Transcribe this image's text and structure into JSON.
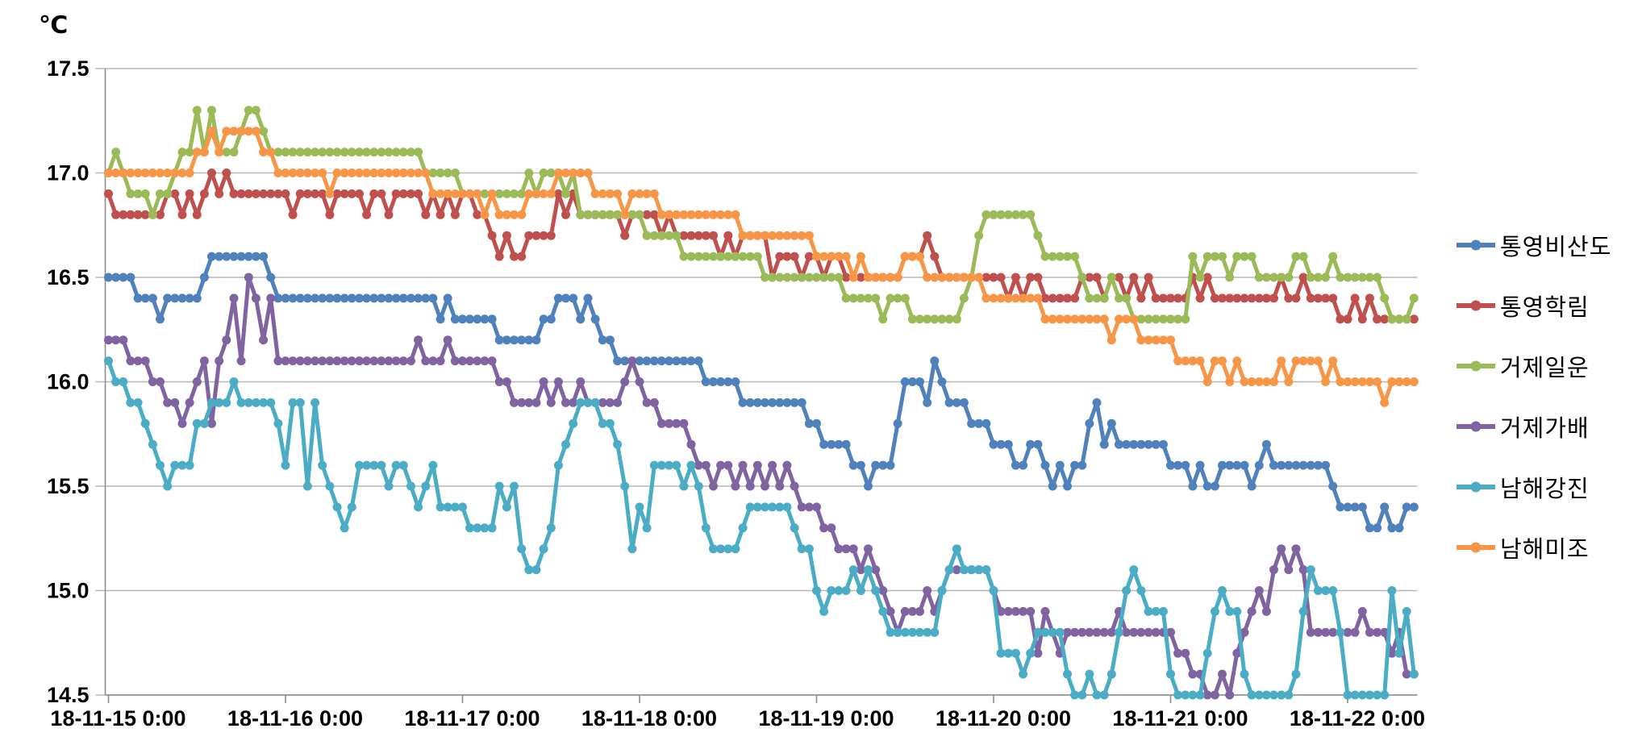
{
  "chart": {
    "y_axis_title": "℃",
    "background": "#ffffff",
    "gridline_color": "#b7b7b7",
    "axis_color": "#8e8e8e",
    "text_color": "#000000"
  },
  "chart_data": {
    "type": "line",
    "title": "",
    "xlabel": "",
    "ylabel": "℃",
    "unit": "°C",
    "grid": true,
    "legend_position": "right",
    "ylim": [
      14.5,
      17.5
    ],
    "y_tick_step": 0.5,
    "y_tick_labels": [
      "17.5",
      "17.0",
      "16.5",
      "16.0",
      "15.5",
      "15.0",
      "14.5"
    ],
    "x_start": "2018-11-15 00:00",
    "x_interval_hours": 1,
    "x_tick_labels": [
      "18-11-15 0:00",
      "18-11-16 0:00",
      "18-11-17 0:00",
      "18-11-18 0:00",
      "18-11-19 0:00",
      "18-11-20 0:00",
      "18-11-21 0:00",
      "18-11-22 0:00"
    ],
    "x_tick_every_hours": 24,
    "series": [
      {
        "name": "통영비산도",
        "color": "#4F81BD",
        "values": [
          16.5,
          16.5,
          16.5,
          16.5,
          16.4,
          16.4,
          16.4,
          16.3,
          16.4,
          16.4,
          16.4,
          16.4,
          16.4,
          16.5,
          16.6,
          16.6,
          16.6,
          16.6,
          16.6,
          16.6,
          16.6,
          16.6,
          16.5,
          16.4,
          16.4,
          16.4,
          16.4,
          16.4,
          16.4,
          16.4,
          16.4,
          16.4,
          16.4,
          16.4,
          16.4,
          16.4,
          16.4,
          16.4,
          16.4,
          16.4,
          16.4,
          16.4,
          16.4,
          16.4,
          16.4,
          16.3,
          16.4,
          16.3,
          16.3,
          16.3,
          16.3,
          16.3,
          16.3,
          16.2,
          16.2,
          16.2,
          16.2,
          16.2,
          16.2,
          16.3,
          16.3,
          16.4,
          16.4,
          16.4,
          16.3,
          16.4,
          16.3,
          16.2,
          16.2,
          16.1,
          16.1,
          16.1,
          16.1,
          16.1,
          16.1,
          16.1,
          16.1,
          16.1,
          16.1,
          16.1,
          16.1,
          16.0,
          16.0,
          16.0,
          16.0,
          16.0,
          15.9,
          15.9,
          15.9,
          15.9,
          15.9,
          15.9,
          15.9,
          15.9,
          15.9,
          15.8,
          15.8,
          15.7,
          15.7,
          15.7,
          15.7,
          15.6,
          15.6,
          15.5,
          15.6,
          15.6,
          15.6,
          15.8,
          16.0,
          16.0,
          16.0,
          15.9,
          16.1,
          16.0,
          15.9,
          15.9,
          15.9,
          15.8,
          15.8,
          15.8,
          15.7,
          15.7,
          15.7,
          15.6,
          15.6,
          15.7,
          15.7,
          15.6,
          15.5,
          15.6,
          15.5,
          15.6,
          15.6,
          15.8,
          15.9,
          15.7,
          15.8,
          15.7,
          15.7,
          15.7,
          15.7,
          15.7,
          15.7,
          15.7,
          15.6,
          15.6,
          15.6,
          15.5,
          15.6,
          15.5,
          15.5,
          15.6,
          15.6,
          15.6,
          15.6,
          15.5,
          15.6,
          15.7,
          15.6,
          15.6,
          15.6,
          15.6,
          15.6,
          15.6,
          15.6,
          15.6,
          15.5,
          15.4,
          15.4,
          15.4,
          15.4,
          15.3,
          15.3,
          15.4,
          15.3,
          15.3,
          15.4,
          15.4
        ]
      },
      {
        "name": "통영학림",
        "color": "#C0504D",
        "values": [
          16.9,
          16.8,
          16.8,
          16.8,
          16.8,
          16.8,
          16.8,
          16.8,
          16.9,
          16.9,
          16.8,
          16.9,
          16.8,
          16.9,
          17.0,
          16.9,
          17.0,
          16.9,
          16.9,
          16.9,
          16.9,
          16.9,
          16.9,
          16.9,
          16.9,
          16.8,
          16.9,
          16.9,
          16.9,
          16.9,
          16.8,
          16.9,
          16.9,
          16.9,
          16.9,
          16.8,
          16.9,
          16.9,
          16.8,
          16.9,
          16.9,
          16.9,
          16.9,
          16.8,
          16.9,
          16.8,
          16.9,
          16.8,
          16.9,
          16.9,
          16.8,
          16.8,
          16.7,
          16.6,
          16.7,
          16.6,
          16.6,
          16.7,
          16.7,
          16.7,
          16.7,
          16.9,
          16.8,
          16.9,
          16.8,
          16.8,
          16.8,
          16.8,
          16.8,
          16.8,
          16.7,
          16.8,
          16.8,
          16.8,
          16.8,
          16.7,
          16.8,
          16.7,
          16.7,
          16.7,
          16.7,
          16.7,
          16.7,
          16.6,
          16.7,
          16.6,
          16.7,
          16.7,
          16.7,
          16.7,
          16.5,
          16.6,
          16.6,
          16.6,
          16.5,
          16.6,
          16.6,
          16.5,
          16.6,
          16.6,
          16.5,
          16.5,
          16.5,
          16.5,
          16.5,
          16.5,
          16.5,
          16.5,
          16.6,
          16.6,
          16.6,
          16.7,
          16.6,
          16.5,
          16.5,
          16.5,
          16.5,
          16.5,
          16.5,
          16.5,
          16.5,
          16.5,
          16.4,
          16.5,
          16.4,
          16.5,
          16.5,
          16.4,
          16.4,
          16.4,
          16.4,
          16.4,
          16.5,
          16.5,
          16.5,
          16.4,
          16.5,
          16.5,
          16.4,
          16.5,
          16.4,
          16.5,
          16.4,
          16.4,
          16.4,
          16.4,
          16.4,
          16.5,
          16.4,
          16.5,
          16.4,
          16.4,
          16.4,
          16.4,
          16.4,
          16.4,
          16.4,
          16.4,
          16.4,
          16.5,
          16.4,
          16.4,
          16.5,
          16.4,
          16.4,
          16.4,
          16.4,
          16.3,
          16.3,
          16.4,
          16.3,
          16.4,
          16.3,
          16.3,
          16.3,
          16.3,
          16.3,
          16.3
        ]
      },
      {
        "name": "거제일운",
        "color": "#9BBB59",
        "values": [
          17.0,
          17.1,
          17.0,
          16.9,
          16.9,
          16.9,
          16.8,
          16.9,
          16.9,
          17.0,
          17.1,
          17.1,
          17.3,
          17.1,
          17.3,
          17.1,
          17.1,
          17.1,
          17.2,
          17.3,
          17.3,
          17.2,
          17.1,
          17.1,
          17.1,
          17.1,
          17.1,
          17.1,
          17.1,
          17.1,
          17.1,
          17.1,
          17.1,
          17.1,
          17.1,
          17.1,
          17.1,
          17.1,
          17.1,
          17.1,
          17.1,
          17.1,
          17.1,
          17.0,
          17.0,
          17.0,
          17.0,
          17.0,
          16.9,
          16.9,
          16.9,
          16.9,
          16.9,
          16.9,
          16.9,
          16.9,
          16.9,
          17.0,
          16.9,
          17.0,
          17.0,
          17.0,
          16.9,
          17.0,
          16.8,
          16.8,
          16.8,
          16.8,
          16.8,
          16.8,
          16.8,
          16.8,
          16.8,
          16.7,
          16.7,
          16.7,
          16.7,
          16.7,
          16.6,
          16.6,
          16.6,
          16.6,
          16.6,
          16.6,
          16.6,
          16.6,
          16.6,
          16.6,
          16.6,
          16.5,
          16.5,
          16.5,
          16.5,
          16.5,
          16.5,
          16.5,
          16.5,
          16.5,
          16.5,
          16.5,
          16.4,
          16.4,
          16.4,
          16.4,
          16.4,
          16.3,
          16.4,
          16.4,
          16.4,
          16.3,
          16.3,
          16.3,
          16.3,
          16.3,
          16.3,
          16.3,
          16.4,
          16.5,
          16.7,
          16.8,
          16.8,
          16.8,
          16.8,
          16.8,
          16.8,
          16.8,
          16.7,
          16.6,
          16.6,
          16.6,
          16.6,
          16.6,
          16.5,
          16.4,
          16.4,
          16.4,
          16.5,
          16.4,
          16.4,
          16.3,
          16.3,
          16.3,
          16.3,
          16.3,
          16.3,
          16.3,
          16.3,
          16.6,
          16.5,
          16.6,
          16.6,
          16.6,
          16.5,
          16.6,
          16.6,
          16.6,
          16.5,
          16.5,
          16.5,
          16.5,
          16.5,
          16.6,
          16.6,
          16.5,
          16.5,
          16.5,
          16.6,
          16.5,
          16.5,
          16.5,
          16.5,
          16.5,
          16.5,
          16.4,
          16.3,
          16.3,
          16.3,
          16.4
        ]
      },
      {
        "name": "거제가배",
        "color": "#8064A2",
        "values": [
          16.2,
          16.2,
          16.2,
          16.1,
          16.1,
          16.1,
          16.0,
          16.0,
          15.9,
          15.9,
          15.8,
          15.9,
          16.0,
          16.1,
          15.8,
          16.1,
          16.2,
          16.4,
          16.1,
          16.5,
          16.4,
          16.2,
          16.4,
          16.1,
          16.1,
          16.1,
          16.1,
          16.1,
          16.1,
          16.1,
          16.1,
          16.1,
          16.1,
          16.1,
          16.1,
          16.1,
          16.1,
          16.1,
          16.1,
          16.1,
          16.1,
          16.1,
          16.2,
          16.1,
          16.1,
          16.1,
          16.2,
          16.1,
          16.1,
          16.1,
          16.1,
          16.1,
          16.1,
          16.0,
          16.0,
          15.9,
          15.9,
          15.9,
          15.9,
          16.0,
          15.9,
          16.0,
          15.9,
          15.9,
          16.0,
          15.9,
          15.9,
          15.9,
          15.9,
          15.9,
          16.0,
          16.1,
          16.0,
          15.9,
          15.9,
          15.8,
          15.8,
          15.8,
          15.8,
          15.7,
          15.6,
          15.6,
          15.5,
          15.6,
          15.6,
          15.5,
          15.6,
          15.5,
          15.6,
          15.5,
          15.6,
          15.5,
          15.6,
          15.5,
          15.4,
          15.4,
          15.4,
          15.3,
          15.3,
          15.2,
          15.2,
          15.2,
          15.1,
          15.2,
          15.1,
          15.0,
          14.9,
          14.8,
          14.9,
          14.9,
          14.9,
          15.0,
          14.9,
          15.0,
          15.1,
          15.1,
          15.1,
          15.1,
          15.1,
          15.1,
          15.0,
          14.9,
          14.9,
          14.9,
          14.9,
          14.9,
          14.7,
          14.9,
          14.8,
          14.7,
          14.8,
          14.8,
          14.8,
          14.8,
          14.8,
          14.8,
          14.8,
          14.9,
          14.8,
          14.8,
          14.8,
          14.8,
          14.8,
          14.8,
          14.8,
          14.7,
          14.7,
          14.6,
          14.6,
          14.5,
          14.5,
          14.6,
          14.5,
          14.7,
          14.8,
          14.9,
          15.0,
          14.9,
          15.1,
          15.2,
          15.1,
          15.2,
          15.1,
          14.8,
          14.8,
          14.8,
          14.8,
          14.8,
          14.8,
          14.8,
          14.9,
          14.8,
          14.8,
          14.8,
          14.7,
          14.8,
          14.6,
          14.6
        ]
      },
      {
        "name": "남해강진",
        "color": "#4BACC6",
        "values": [
          16.1,
          16.0,
          16.0,
          15.9,
          15.9,
          15.8,
          15.7,
          15.6,
          15.5,
          15.6,
          15.6,
          15.6,
          15.8,
          15.8,
          15.9,
          15.9,
          15.9,
          16.0,
          15.9,
          15.9,
          15.9,
          15.9,
          15.9,
          15.8,
          15.6,
          15.9,
          15.9,
          15.5,
          15.9,
          15.6,
          15.5,
          15.4,
          15.3,
          15.4,
          15.6,
          15.6,
          15.6,
          15.6,
          15.5,
          15.6,
          15.6,
          15.5,
          15.4,
          15.5,
          15.6,
          15.4,
          15.4,
          15.4,
          15.4,
          15.3,
          15.3,
          15.3,
          15.3,
          15.5,
          15.4,
          15.5,
          15.2,
          15.1,
          15.1,
          15.2,
          15.3,
          15.6,
          15.7,
          15.8,
          15.9,
          15.9,
          15.9,
          15.8,
          15.8,
          15.7,
          15.5,
          15.2,
          15.4,
          15.3,
          15.6,
          15.6,
          15.6,
          15.6,
          15.5,
          15.6,
          15.5,
          15.3,
          15.2,
          15.2,
          15.2,
          15.2,
          15.3,
          15.4,
          15.4,
          15.4,
          15.4,
          15.4,
          15.4,
          15.3,
          15.2,
          15.2,
          15.0,
          14.9,
          15.0,
          15.0,
          15.0,
          15.1,
          15.0,
          15.1,
          15.0,
          14.9,
          14.8,
          14.8,
          14.8,
          14.8,
          14.8,
          14.8,
          14.8,
          15.0,
          15.1,
          15.2,
          15.1,
          15.1,
          15.1,
          15.1,
          15.0,
          14.7,
          14.7,
          14.7,
          14.6,
          14.7,
          14.8,
          14.8,
          14.8,
          14.8,
          14.6,
          14.5,
          14.5,
          14.6,
          14.5,
          14.5,
          14.6,
          14.8,
          15.0,
          15.1,
          15.0,
          14.9,
          14.9,
          14.9,
          14.6,
          14.5,
          14.5,
          14.5,
          14.5,
          14.7,
          14.9,
          15.0,
          14.9,
          14.9,
          14.6,
          14.5,
          14.5,
          14.5,
          14.5,
          14.5,
          14.5,
          14.6,
          14.9,
          15.1,
          15.0,
          15.0,
          15.0,
          14.8,
          14.5,
          14.5,
          14.5,
          14.5,
          14.5,
          14.5,
          15.0,
          14.7,
          14.9,
          14.6
        ]
      },
      {
        "name": "남해미조",
        "color": "#F79646",
        "values": [
          17.0,
          17.0,
          17.0,
          17.0,
          17.0,
          17.0,
          17.0,
          17.0,
          17.0,
          17.0,
          17.0,
          17.0,
          17.1,
          17.1,
          17.2,
          17.1,
          17.2,
          17.2,
          17.2,
          17.2,
          17.2,
          17.1,
          17.1,
          17.0,
          17.0,
          17.0,
          17.0,
          17.0,
          17.0,
          17.0,
          16.9,
          17.0,
          17.0,
          17.0,
          17.0,
          17.0,
          17.0,
          17.0,
          17.0,
          17.0,
          17.0,
          17.0,
          17.0,
          17.0,
          16.9,
          16.9,
          16.9,
          16.9,
          16.9,
          16.9,
          16.9,
          16.8,
          16.9,
          16.8,
          16.8,
          16.8,
          16.8,
          16.9,
          16.9,
          16.9,
          16.9,
          17.0,
          17.0,
          17.0,
          17.0,
          17.0,
          16.9,
          16.9,
          16.9,
          16.9,
          16.8,
          16.9,
          16.9,
          16.9,
          16.9,
          16.8,
          16.8,
          16.8,
          16.8,
          16.8,
          16.8,
          16.8,
          16.8,
          16.8,
          16.8,
          16.8,
          16.7,
          16.7,
          16.7,
          16.7,
          16.7,
          16.7,
          16.7,
          16.7,
          16.7,
          16.7,
          16.6,
          16.6,
          16.6,
          16.6,
          16.6,
          16.5,
          16.6,
          16.5,
          16.5,
          16.5,
          16.5,
          16.5,
          16.6,
          16.6,
          16.6,
          16.5,
          16.5,
          16.5,
          16.5,
          16.5,
          16.5,
          16.5,
          16.5,
          16.4,
          16.4,
          16.4,
          16.4,
          16.4,
          16.4,
          16.4,
          16.4,
          16.3,
          16.3,
          16.3,
          16.3,
          16.3,
          16.3,
          16.3,
          16.3,
          16.3,
          16.2,
          16.3,
          16.3,
          16.3,
          16.2,
          16.2,
          16.2,
          16.2,
          16.2,
          16.1,
          16.1,
          16.1,
          16.1,
          16.0,
          16.1,
          16.1,
          16.0,
          16.1,
          16.0,
          16.0,
          16.0,
          16.0,
          16.0,
          16.1,
          16.0,
          16.1,
          16.1,
          16.1,
          16.1,
          16.0,
          16.1,
          16.0,
          16.0,
          16.0,
          16.0,
          16.0,
          16.0,
          15.9,
          16.0,
          16.0,
          16.0,
          16.0
        ]
      }
    ]
  },
  "legend": {
    "items": [
      {
        "label": "통영비산도",
        "color": "#4F81BD"
      },
      {
        "label": "통영학림",
        "color": "#C0504D"
      },
      {
        "label": "거제일운",
        "color": "#9BBB59"
      },
      {
        "label": "거제가배",
        "color": "#8064A2"
      },
      {
        "label": "남해강진",
        "color": "#4BACC6"
      },
      {
        "label": "남해미조",
        "color": "#F79646"
      }
    ]
  }
}
